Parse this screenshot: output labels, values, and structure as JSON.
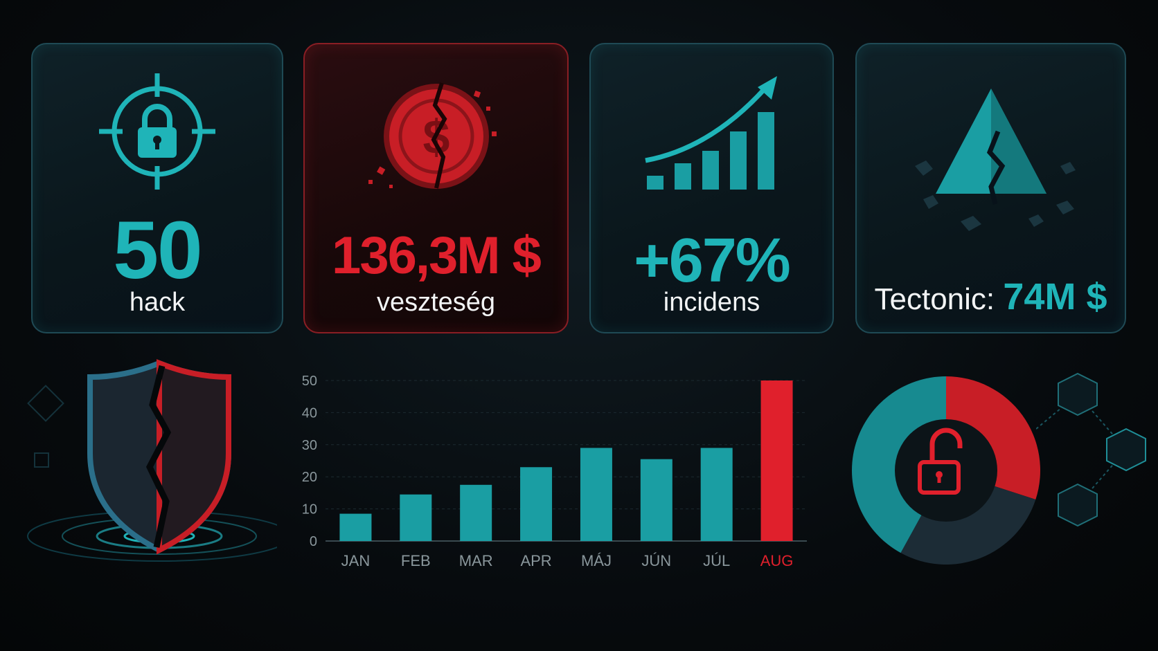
{
  "cards": [
    {
      "value": "50",
      "label": "hack",
      "icon": "lock-target-icon"
    },
    {
      "value": "136,3M $",
      "label": "veszteség",
      "icon": "broken-dollar-coin-icon"
    },
    {
      "value": "+67%",
      "label": "incidens",
      "icon": "rising-bars-icon"
    },
    {
      "prefix": "Tectonic:",
      "value": "74M $",
      "icon": "cracked-pyramid-icon"
    }
  ],
  "colors": {
    "teal": "#1fb4b8",
    "red": "#e0202c",
    "bg": "#070b0e"
  },
  "chart_data": {
    "type": "bar",
    "categories": [
      "JAN",
      "FEB",
      "MAR",
      "APR",
      "MÁJ",
      "JÚN",
      "JÚL",
      "AUG"
    ],
    "values": [
      8.5,
      14.5,
      17.5,
      23,
      29,
      25.5,
      29,
      50
    ],
    "highlight": "AUG",
    "yticks": [
      "0",
      "10",
      "20",
      "30",
      "40",
      "50"
    ],
    "ylim": [
      0,
      50
    ],
    "grid": true,
    "bar_color": "#1a9ea3",
    "highlight_color": "#e0202c"
  },
  "donut": {
    "icon": "unlocked-padlock-icon",
    "red_fraction": 0.3,
    "teal_fraction": 0.7
  },
  "decorations": {
    "shield": "cracked-shield-icon",
    "network": "network-cubes-icon"
  }
}
